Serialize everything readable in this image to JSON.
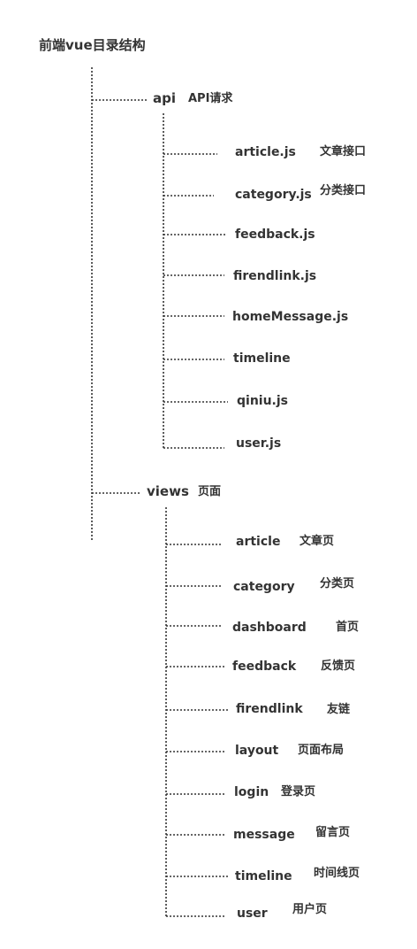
{
  "title": "前端vue目录结构",
  "api": {
    "name": "api",
    "desc": "API请求",
    "files": [
      {
        "name": "article.js",
        "desc": "文章接口"
      },
      {
        "name": "category.js",
        "desc": "分类接口"
      },
      {
        "name": "feedback.js",
        "desc": ""
      },
      {
        "name": "firendlink.js",
        "desc": ""
      },
      {
        "name": "homeMessage.js",
        "desc": ""
      },
      {
        "name": "timeline",
        "desc": ""
      },
      {
        "name": "qiniu.js",
        "desc": ""
      },
      {
        "name": "user.js",
        "desc": ""
      }
    ]
  },
  "views": {
    "name": "views",
    "desc": "页面",
    "folders": [
      {
        "name": "article",
        "desc": "文章页"
      },
      {
        "name": "category",
        "desc": "分类页"
      },
      {
        "name": "dashboard",
        "desc": "首页"
      },
      {
        "name": "feedback",
        "desc": "反馈页"
      },
      {
        "name": "firendlink",
        "desc": "友链"
      },
      {
        "name": "layout",
        "desc": "页面布局"
      },
      {
        "name": "login",
        "desc": "登录页"
      },
      {
        "name": "message",
        "desc": "留言页"
      },
      {
        "name": "timeline",
        "desc": "时间线页"
      },
      {
        "name": "user",
        "desc": "用户页"
      }
    ]
  }
}
